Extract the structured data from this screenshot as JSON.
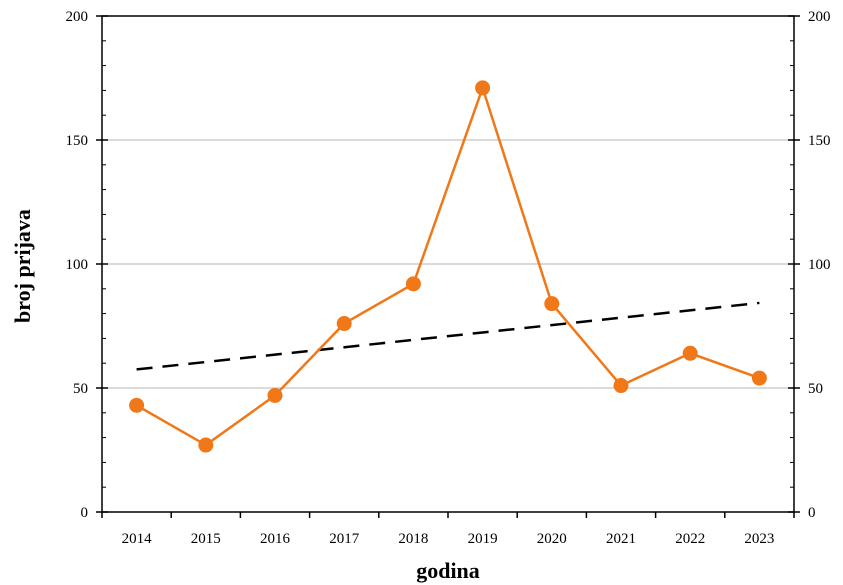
{
  "chart_data": {
    "type": "line",
    "title": "",
    "xlabel": "godina",
    "ylabel": "broj prijava",
    "categories": [
      "2014",
      "2015",
      "2016",
      "2017",
      "2018",
      "2019",
      "2020",
      "2021",
      "2022",
      "2023"
    ],
    "series": [
      {
        "values": [
          43,
          27,
          47,
          76,
          92,
          171,
          84,
          51,
          64,
          54
        ],
        "color": "#F07818",
        "marker": "circle"
      }
    ],
    "trendline": {
      "style": "dashed",
      "color": "#000000",
      "start": 57.5,
      "end": 84.3
    },
    "ylim": [
      0,
      200
    ],
    "yticks": [
      0,
      50,
      100,
      150,
      200
    ],
    "secondary_yticks": [
      0,
      50,
      100,
      150,
      200
    ],
    "grid": true,
    "legend": "none"
  }
}
